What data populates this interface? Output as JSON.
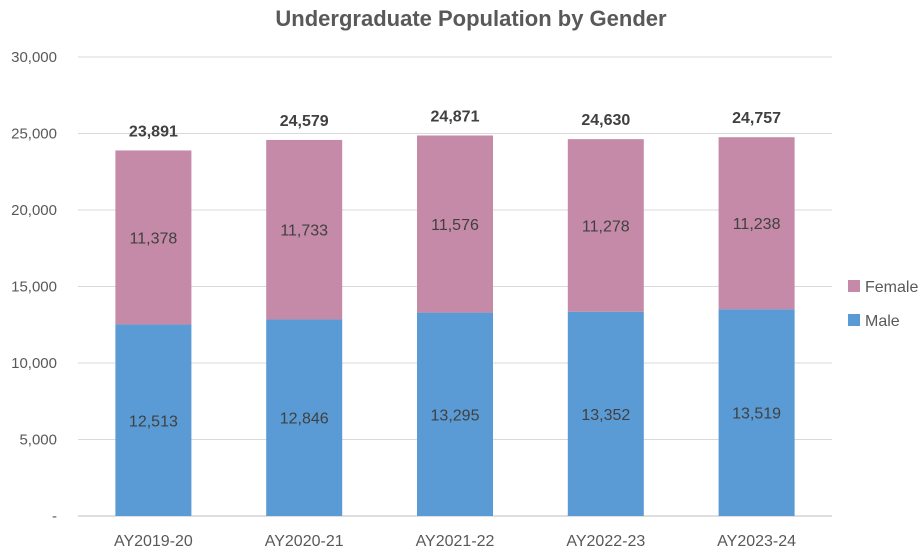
{
  "chart_data": {
    "type": "bar",
    "stacked": true,
    "title": "Undergraduate Population by Gender",
    "xlabel": "",
    "ylabel": "",
    "categories": [
      "AY2019-20",
      "AY2020-21",
      "AY2021-22",
      "AY2022-23",
      "AY2023-24"
    ],
    "series": [
      {
        "name": "Male",
        "color": "#5b9bd5",
        "values": [
          12513,
          12846,
          13295,
          13352,
          13519
        ],
        "labels": [
          "12,513",
          "12,846",
          "13,295",
          "13,352",
          "13,519"
        ]
      },
      {
        "name": "Female",
        "color": "#c48aa7",
        "values": [
          11378,
          11733,
          11576,
          11278,
          11238
        ],
        "labels": [
          "11,378",
          "11,733",
          "11,576",
          "11,278",
          "11,238"
        ]
      }
    ],
    "totals": [
      23891,
      24579,
      24871,
      24630,
      24757
    ],
    "total_labels": [
      "23,891",
      "24,579",
      "24,871",
      "24,630",
      "24,757"
    ],
    "ylim": [
      0,
      30000
    ],
    "yticks": [
      0,
      5000,
      10000,
      15000,
      20000,
      25000,
      30000
    ],
    "ytick_labels": [
      "-",
      "5,000",
      "10,000",
      "15,000",
      "20,000",
      "25,000",
      "30,000"
    ],
    "legend": {
      "position": "right",
      "order": [
        "Female",
        "Male"
      ]
    },
    "grid": true,
    "colors": {
      "gridline": "#d9d9d9",
      "axis_text": "#595959",
      "title": "#595959",
      "total_text": "#404040",
      "data_label": "#404040"
    }
  }
}
